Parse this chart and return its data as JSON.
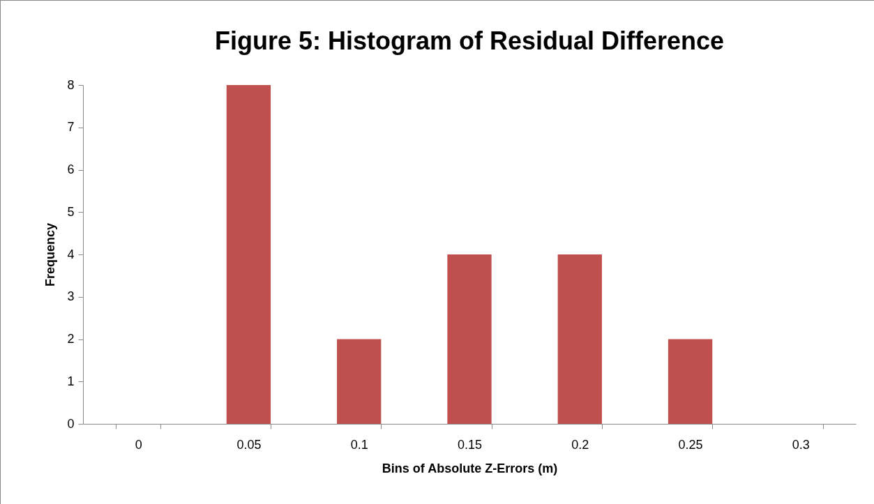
{
  "chart_data": {
    "type": "bar",
    "title": "Figure 5: Histogram of Residual Difference",
    "xlabel": "Bins of Absolute Z-Errors (m)",
    "ylabel": "Frequency",
    "categories": [
      "0",
      "0.05",
      "0.1",
      "0.15",
      "0.2",
      "0.25",
      "0.3"
    ],
    "values": [
      0,
      8,
      2,
      4,
      4,
      2,
      0
    ],
    "color": "#c0504d",
    "ylim": [
      0,
      8
    ],
    "yticks": [
      0,
      1,
      2,
      3,
      4,
      5,
      6,
      7,
      8
    ],
    "grid": false
  }
}
